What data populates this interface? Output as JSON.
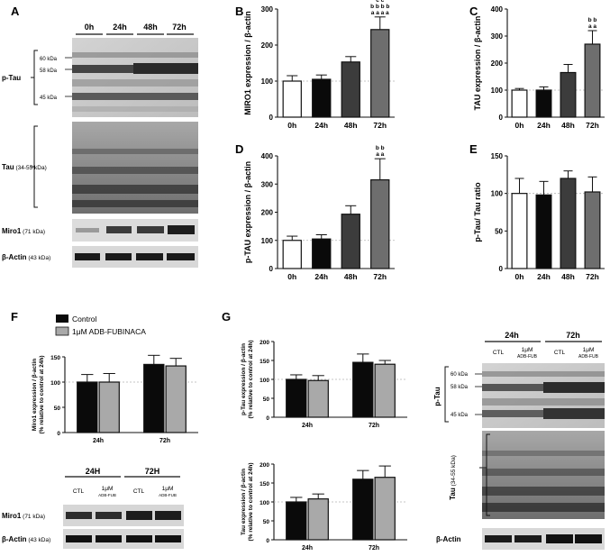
{
  "panels": {
    "A": {
      "letter": "A",
      "lanes": [
        "0h",
        "24h",
        "48h",
        "72h"
      ],
      "marker_60": "60 kDa",
      "marker_58": "58 kDa",
      "marker_45": "45 kDa",
      "ptau_label": "p-Tau",
      "tau_label": "Tau",
      "tau_size": " (34-55 kDa)",
      "miro_label": "Miro1",
      "miro_size": " (71 kDa)",
      "actin_label": "β-Actin",
      "actin_size": " (43 kDa)"
    },
    "F": {
      "letter": "F",
      "legend_control": "Control",
      "legend_treated": "1μM ADB-FUBINACA",
      "blot_groups": [
        "24H",
        "72H"
      ],
      "blot_lane_ctl": "CTL",
      "blot_lane_treat_1": "1μM",
      "blot_lane_treat_2": "ADB-FUB",
      "miro_label": "Miro1",
      "miro_size": " (71 kDa)",
      "actin_label": "β-Actin",
      "actin_size": " (43 kDa)"
    },
    "G": {
      "letter": "G",
      "blot_groups": [
        "24h",
        "72h"
      ],
      "blot_lane_ctl": "CTL",
      "blot_lane_treat_1": "1μM",
      "blot_lane_treat_2": "ADB-FUB",
      "marker_60": "60 kDa",
      "marker_58": "58 kDa",
      "marker_45": "45 kDa",
      "ptau_label": "p-Tau",
      "tau_label": "Tau",
      "tau_size": " (34-55 kDa)",
      "actin_label": "β-Actin"
    }
  },
  "colors": {
    "black_bar": "#0a0a0a",
    "dark_grey_bar": "#3c3c3c",
    "grey_bar": "#6e6e6e",
    "light_grey_bar": "#a9a9a9",
    "white_bar": "#ffffff",
    "reference_line": "#b4b4b4"
  },
  "chart_data": [
    {
      "panel": "B",
      "type": "bar",
      "ylabel": "MIRO1 expression / β-actin",
      "categories": [
        "0h",
        "24h",
        "48h",
        "72h"
      ],
      "values": [
        100,
        105,
        153,
        243
      ],
      "errors": [
        15,
        12,
        15,
        35
      ],
      "ylim": [
        0,
        300
      ],
      "yticks": [
        0,
        100,
        200,
        300
      ],
      "annotations": [
        {
          "category": "72h",
          "lines": [
            "c c",
            "b b b b",
            "a a a a"
          ]
        }
      ]
    },
    {
      "panel": "C",
      "type": "bar",
      "ylabel": "TAU expression / β-actin",
      "categories": [
        "0h",
        "24h",
        "48h",
        "72h"
      ],
      "values": [
        100,
        100,
        165,
        270
      ],
      "errors": [
        6,
        12,
        30,
        50
      ],
      "ylim": [
        0,
        400
      ],
      "yticks": [
        0,
        100,
        200,
        300,
        400
      ],
      "annotations": [
        {
          "category": "72h",
          "lines": [
            "b b",
            "a a"
          ]
        }
      ]
    },
    {
      "panel": "D",
      "type": "bar",
      "ylabel": "p-TAU expression / β-actin",
      "categories": [
        "0h",
        "24h",
        "48h",
        "72h"
      ],
      "values": [
        100,
        105,
        193,
        315
      ],
      "errors": [
        15,
        15,
        30,
        75
      ],
      "ylim": [
        0,
        400
      ],
      "yticks": [
        0,
        100,
        200,
        300,
        400
      ],
      "annotations": [
        {
          "category": "72h",
          "lines": [
            "b b",
            "a a"
          ]
        }
      ]
    },
    {
      "panel": "E",
      "type": "bar",
      "ylabel": "p-Tau/ Tau ratio",
      "categories": [
        "0h",
        "24h",
        "48h",
        "72h"
      ],
      "values": [
        100,
        98,
        120,
        102
      ],
      "errors": [
        20,
        18,
        10,
        20
      ],
      "ylim": [
        0,
        150
      ],
      "yticks": [
        0,
        50,
        100,
        150
      ],
      "annotations": []
    },
    {
      "panel": "F",
      "type": "bar",
      "ylabel": "Miro1 expression / β-actin",
      "ylabel2": "(% relative to control at 24h)",
      "categories": [
        "24h",
        "72h"
      ],
      "series": [
        {
          "name": "Control",
          "values": [
            100,
            135
          ],
          "errors": [
            15,
            18
          ]
        },
        {
          "name": "1μM ADB-FUBINACA",
          "values": [
            100,
            132
          ],
          "errors": [
            17,
            15
          ]
        }
      ],
      "ylim": [
        0,
        150
      ],
      "yticks": [
        0,
        50,
        100,
        150
      ]
    },
    {
      "panel": "G-ptau",
      "type": "bar",
      "ylabel": "p-Tau expression / β-actin",
      "ylabel2": "(% relative to control at 24h)",
      "categories": [
        "24h",
        "72h"
      ],
      "series": [
        {
          "name": "Control",
          "values": [
            100,
            145
          ],
          "errors": [
            12,
            22
          ]
        },
        {
          "name": "1μM ADB-FUBINACA",
          "values": [
            97,
            140
          ],
          "errors": [
            13,
            10
          ]
        }
      ],
      "ylim": [
        0,
        200
      ],
      "yticks": [
        0,
        50,
        100,
        150,
        200
      ]
    },
    {
      "panel": "G-tau",
      "type": "bar",
      "ylabel": "Tau expression / β-actin",
      "ylabel2": "(% relative to control at 24h)",
      "categories": [
        "24h",
        "72h"
      ],
      "series": [
        {
          "name": "Control",
          "values": [
            100,
            160
          ],
          "errors": [
            12,
            23
          ]
        },
        {
          "name": "1μM ADB-FUBINACA",
          "values": [
            108,
            165
          ],
          "errors": [
            13,
            30
          ]
        }
      ],
      "ylim": [
        0,
        200
      ],
      "yticks": [
        0,
        50,
        100,
        150,
        200
      ]
    }
  ]
}
